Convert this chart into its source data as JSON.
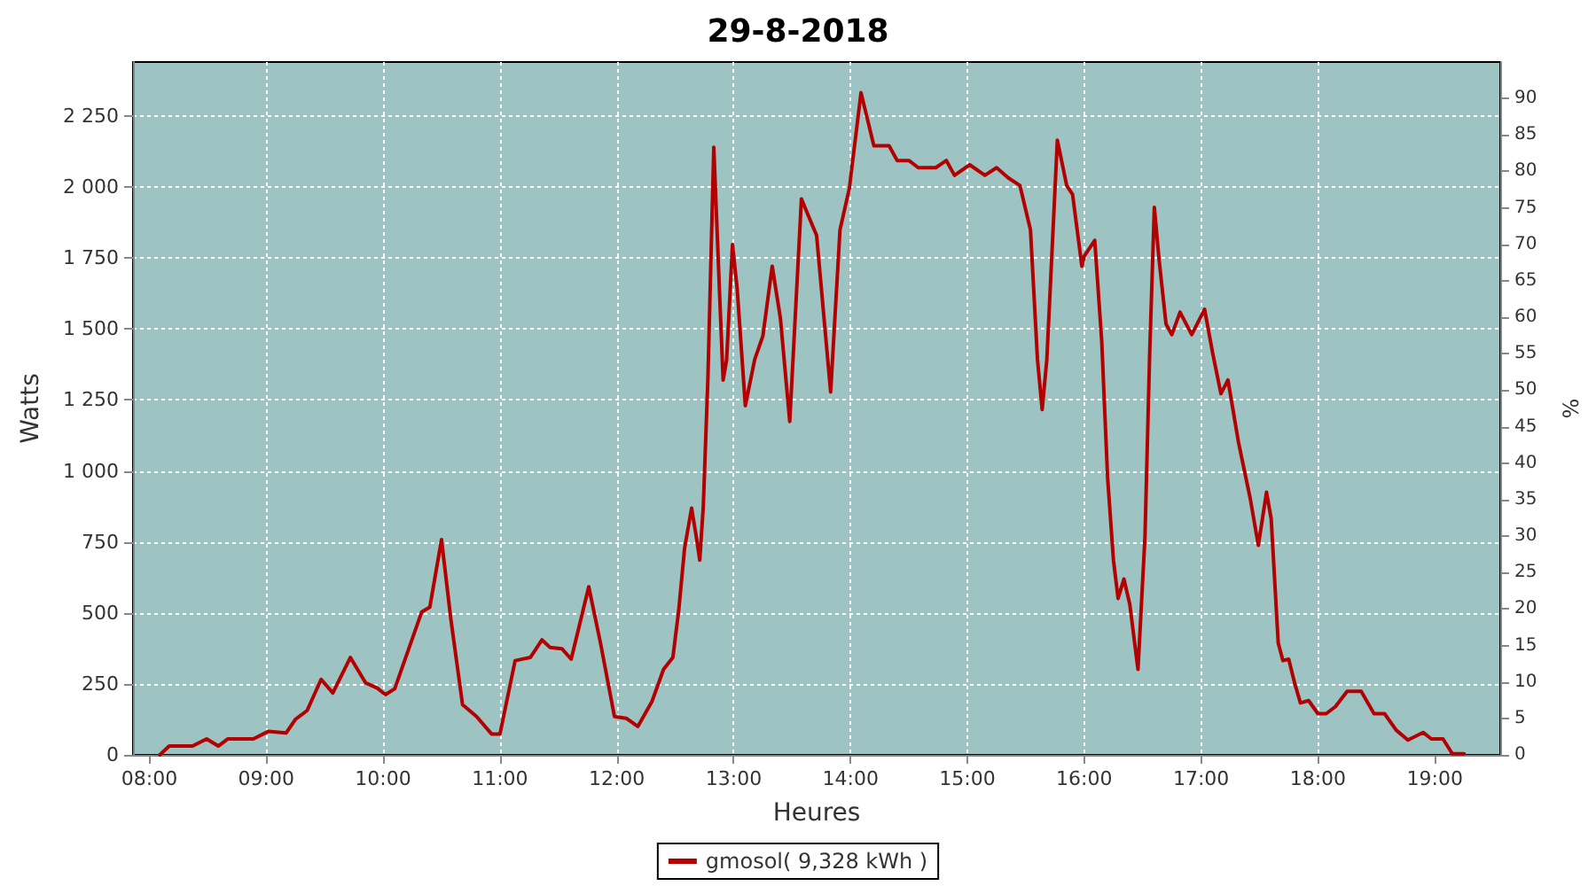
{
  "chart_data": {
    "type": "line",
    "title": "29-8-2018",
    "xlabel": "Heures",
    "ylabel": "Watts",
    "y2label": "%",
    "xlim": [
      7.86,
      19.56
    ],
    "xticks": [
      {
        "value": 8,
        "label": "08:00"
      },
      {
        "value": 9,
        "label": "09:00"
      },
      {
        "value": 10,
        "label": "10:00"
      },
      {
        "value": 11,
        "label": "11:00"
      },
      {
        "value": 12,
        "label": "12:00"
      },
      {
        "value": 13,
        "label": "13:00"
      },
      {
        "value": 14,
        "label": "14:00"
      },
      {
        "value": 15,
        "label": "15:00"
      },
      {
        "value": 16,
        "label": "16:00"
      },
      {
        "value": 17,
        "label": "17:00"
      },
      {
        "value": 18,
        "label": "18:00"
      },
      {
        "value": 19,
        "label": "19:00"
      }
    ],
    "ylim": [
      0,
      2440
    ],
    "yticks": [
      0,
      250,
      500,
      750,
      {
        "value": 1000,
        "label": "1 000"
      },
      {
        "value": 1250,
        "label": "1 250"
      },
      {
        "value": 1500,
        "label": "1 500"
      },
      {
        "value": 1750,
        "label": "1 750"
      },
      {
        "value": 2000,
        "label": "2 000"
      },
      {
        "value": 2250,
        "label": "2 250"
      }
    ],
    "y2lim": [
      0,
      95
    ],
    "y2ticks": [
      0,
      5,
      10,
      15,
      20,
      25,
      30,
      35,
      40,
      45,
      50,
      55,
      60,
      65,
      70,
      75,
      80,
      85,
      90
    ],
    "grid": true,
    "legend": "bottom",
    "marker": "none",
    "line_style": "solid",
    "series": [
      {
        "name": "gmosol( 9,328 kWh )",
        "color": "#b30000",
        "x": [
          8.09,
          8.17,
          8.37,
          8.49,
          8.59,
          8.67,
          8.89,
          9.02,
          9.17,
          9.25,
          9.35,
          9.47,
          9.57,
          9.72,
          9.85,
          9.95,
          10.02,
          10.1,
          10.33,
          10.4,
          10.5,
          10.58,
          10.68,
          10.8,
          10.93,
          11.0,
          11.13,
          11.26,
          11.36,
          11.43,
          11.53,
          11.61,
          11.76,
          11.86,
          11.98,
          12.08,
          12.18,
          12.3,
          12.4,
          12.48,
          12.53,
          12.58,
          12.64,
          12.68,
          12.71,
          12.74,
          12.78,
          12.83,
          12.88,
          12.91,
          12.94,
          12.99,
          13.03,
          13.1,
          13.18,
          13.25,
          13.33,
          13.4,
          13.48,
          13.58,
          13.71,
          13.83,
          13.91,
          13.99,
          14.09,
          14.2,
          14.33,
          14.4,
          14.5,
          14.58,
          14.73,
          14.82,
          14.89,
          15.02,
          15.15,
          15.25,
          15.35,
          15.45,
          15.54,
          15.6,
          15.64,
          15.68,
          15.77,
          15.85,
          15.9,
          15.98,
          16.0,
          16.09,
          16.15,
          16.2,
          16.25,
          16.29,
          16.34,
          16.39,
          16.46,
          16.52,
          16.56,
          16.6,
          16.64,
          16.7,
          16.75,
          16.82,
          16.92,
          17.03,
          17.1,
          17.17,
          17.23,
          17.32,
          17.42,
          17.49,
          17.56,
          17.6,
          17.66,
          17.7,
          17.75,
          17.8,
          17.85,
          17.92,
          18.0,
          18.07,
          18.15,
          18.25,
          18.37,
          18.48,
          18.57,
          18.67,
          18.77,
          18.9,
          18.97,
          19.07,
          19.15,
          19.25
        ],
        "values": [
          0,
          31,
          31,
          56,
          31,
          56,
          56,
          83,
          77,
          125,
          156,
          266,
          218,
          343,
          254,
          235,
          212,
          233,
          503,
          520,
          758,
          478,
          177,
          135,
          73,
          73,
          332,
          343,
          405,
          378,
          374,
          337,
          592,
          395,
          135,
          129,
          100,
          187,
          301,
          343,
          509,
          727,
          869,
          769,
          686,
          873,
          1330,
          2140,
          1621,
          1320,
          1392,
          1797,
          1642,
          1230,
          1392,
          1475,
          1721,
          1538,
          1174,
          1958,
          1829,
          1278,
          1849,
          1995,
          2332,
          2145,
          2145,
          2093,
          2093,
          2068,
          2068,
          2093,
          2041,
          2078,
          2041,
          2068,
          2032,
          2005,
          1849,
          1392,
          1216,
          1392,
          2165,
          2005,
          1974,
          1721,
          1756,
          1812,
          1455,
          977,
          686,
          551,
          619,
          530,
          301,
          769,
          1413,
          1928,
          1746,
          1517,
          1480,
          1559,
          1480,
          1569,
          1413,
          1272,
          1320,
          1101,
          904,
          738,
          925,
          831,
          395,
          332,
          337,
          254,
          183,
          191,
          145,
          145,
          170,
          224,
          224,
          145,
          145,
          87,
          52,
          79,
          56,
          56,
          4,
          4
        ]
      }
    ]
  }
}
